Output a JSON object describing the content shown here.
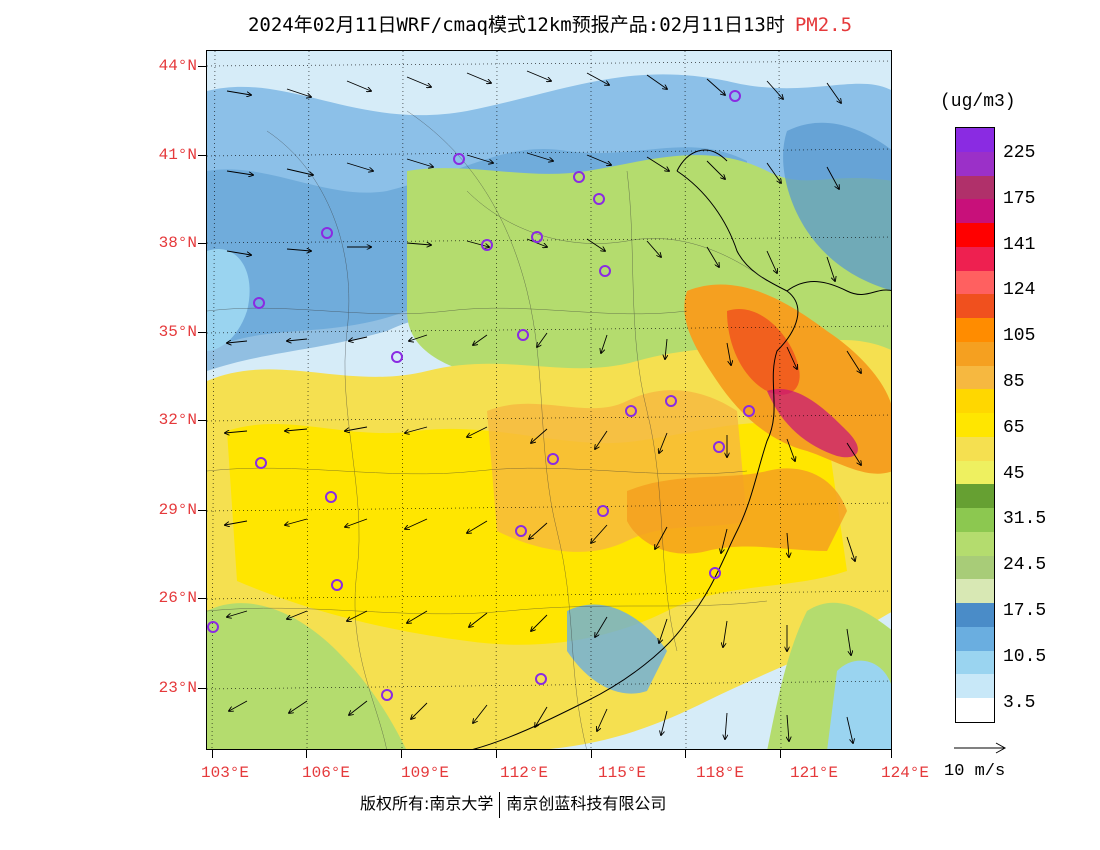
{
  "title": {
    "main": "2024年02月11日WRF/cmaq模式12km预报产品:02月11日13时",
    "pollutant": "PM2.5"
  },
  "map": {
    "lat_labels": [
      "44°N",
      "41°N",
      "38°N",
      "35°N",
      "32°N",
      "29°N",
      "26°N",
      "23°N"
    ],
    "lon_labels": [
      "103°E",
      "106°E",
      "109°E",
      "112°E",
      "115°E",
      "118°E",
      "121°E",
      "124°E"
    ],
    "station_marker_color": "#8a2be2",
    "background_note_color": "#e6f4fb"
  },
  "legend": {
    "unit": "(ug/m3)",
    "labels": [
      "225",
      "175",
      "141",
      "124",
      "105",
      "85",
      "65",
      "45",
      "31.5",
      "24.5",
      "17.5",
      "10.5",
      "3.5"
    ],
    "colors": [
      "#8a2be2",
      "#9b30c8",
      "#b0306a",
      "#c8107a",
      "#ff0000",
      "#ee2050",
      "#ff6060",
      "#f0501e",
      "#ff8c00",
      "#f5a020",
      "#f6b840",
      "#ffd700",
      "#ffe600",
      "#f5e050",
      "#eef060",
      "#66a032",
      "#8cc850",
      "#b4dc6e",
      "#a8cc78",
      "#d8e8b4",
      "#4a8cc8",
      "#6aaee0",
      "#9ad4f0",
      "#c8e8f8",
      "#ffffff"
    ]
  },
  "wind_reference": {
    "label": "10 m/s"
  },
  "footer": {
    "copyright_left": "版权所有:南京大学",
    "copyright_right": "南京创蓝科技有限公司"
  }
}
